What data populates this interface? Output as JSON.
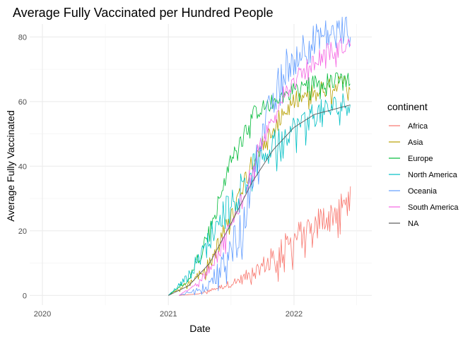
{
  "chart_data": {
    "type": "line",
    "title": "Average Fully Vaccinated per Hundred People",
    "xlabel": "Date",
    "ylabel": "Average Fully Vaccinated",
    "x_ticks": [
      "2020",
      "2021",
      "2022"
    ],
    "y_ticks": [
      0,
      20,
      40,
      60,
      80
    ],
    "xlim": [
      "2019-11-25",
      "2022-08-15"
    ],
    "ylim": [
      -3,
      84
    ],
    "grid": true,
    "legend_placement": "right",
    "legend_title": "continent",
    "series": [
      {
        "name": "Africa",
        "color": "#F8766D",
        "noise": 5,
        "points": [
          [
            "2021-02-01",
            0
          ],
          [
            "2021-04-01",
            0.5
          ],
          [
            "2021-06-01",
            2.5
          ],
          [
            "2021-08-01",
            5
          ],
          [
            "2021-10-01",
            9
          ],
          [
            "2021-12-01",
            14
          ],
          [
            "2022-02-01",
            20
          ],
          [
            "2022-04-01",
            24
          ],
          [
            "2022-06-15",
            29
          ]
        ]
      },
      {
        "name": "Asia",
        "color": "#B79F00",
        "noise": 3,
        "points": [
          [
            "2021-01-01",
            0
          ],
          [
            "2021-03-01",
            4
          ],
          [
            "2021-05-01",
            10
          ],
          [
            "2021-07-01",
            24
          ],
          [
            "2021-09-01",
            42
          ],
          [
            "2021-11-01",
            52
          ],
          [
            "2022-01-01",
            60
          ],
          [
            "2022-03-01",
            63
          ],
          [
            "2022-06-15",
            66
          ]
        ]
      },
      {
        "name": "Europe",
        "color": "#00BA38",
        "noise": 2.5,
        "points": [
          [
            "2021-01-01",
            0
          ],
          [
            "2021-03-01",
            5
          ],
          [
            "2021-05-01",
            20
          ],
          [
            "2021-07-01",
            42
          ],
          [
            "2021-09-01",
            56
          ],
          [
            "2021-11-01",
            60
          ],
          [
            "2022-01-01",
            64
          ],
          [
            "2022-03-01",
            66
          ],
          [
            "2022-06-15",
            67
          ]
        ]
      },
      {
        "name": "North America",
        "color": "#00BFC4",
        "noise": 4,
        "points": [
          [
            "2021-01-01",
            0
          ],
          [
            "2021-03-01",
            6
          ],
          [
            "2021-05-01",
            18
          ],
          [
            "2021-07-01",
            30
          ],
          [
            "2021-09-01",
            40
          ],
          [
            "2021-11-01",
            47
          ],
          [
            "2022-01-01",
            52
          ],
          [
            "2022-03-01",
            56
          ],
          [
            "2022-06-15",
            60
          ]
        ]
      },
      {
        "name": "Oceania",
        "color": "#619CFF",
        "noise": 6,
        "points": [
          [
            "2021-02-01",
            0
          ],
          [
            "2021-04-01",
            2
          ],
          [
            "2021-06-01",
            8
          ],
          [
            "2021-08-01",
            20
          ],
          [
            "2021-10-01",
            50
          ],
          [
            "2021-12-01",
            70
          ],
          [
            "2022-02-01",
            77
          ],
          [
            "2022-04-01",
            80
          ],
          [
            "2022-06-15",
            82
          ]
        ]
      },
      {
        "name": "South America",
        "color": "#F564E3",
        "noise": 3,
        "points": [
          [
            "2021-02-01",
            0
          ],
          [
            "2021-04-01",
            4
          ],
          [
            "2021-06-01",
            14
          ],
          [
            "2021-08-01",
            30
          ],
          [
            "2021-10-01",
            48
          ],
          [
            "2021-12-01",
            62
          ],
          [
            "2022-02-01",
            70
          ],
          [
            "2022-04-01",
            75
          ],
          [
            "2022-06-15",
            78
          ]
        ]
      },
      {
        "name": "NA",
        "color": "#595959",
        "noise": 0,
        "points": [
          [
            "2021-01-01",
            0
          ],
          [
            "2021-03-01",
            3
          ],
          [
            "2021-05-01",
            10
          ],
          [
            "2021-07-01",
            22
          ],
          [
            "2021-09-01",
            35
          ],
          [
            "2021-11-01",
            45
          ],
          [
            "2022-01-01",
            52
          ],
          [
            "2022-03-01",
            56
          ],
          [
            "2022-06-15",
            59
          ]
        ]
      }
    ]
  }
}
